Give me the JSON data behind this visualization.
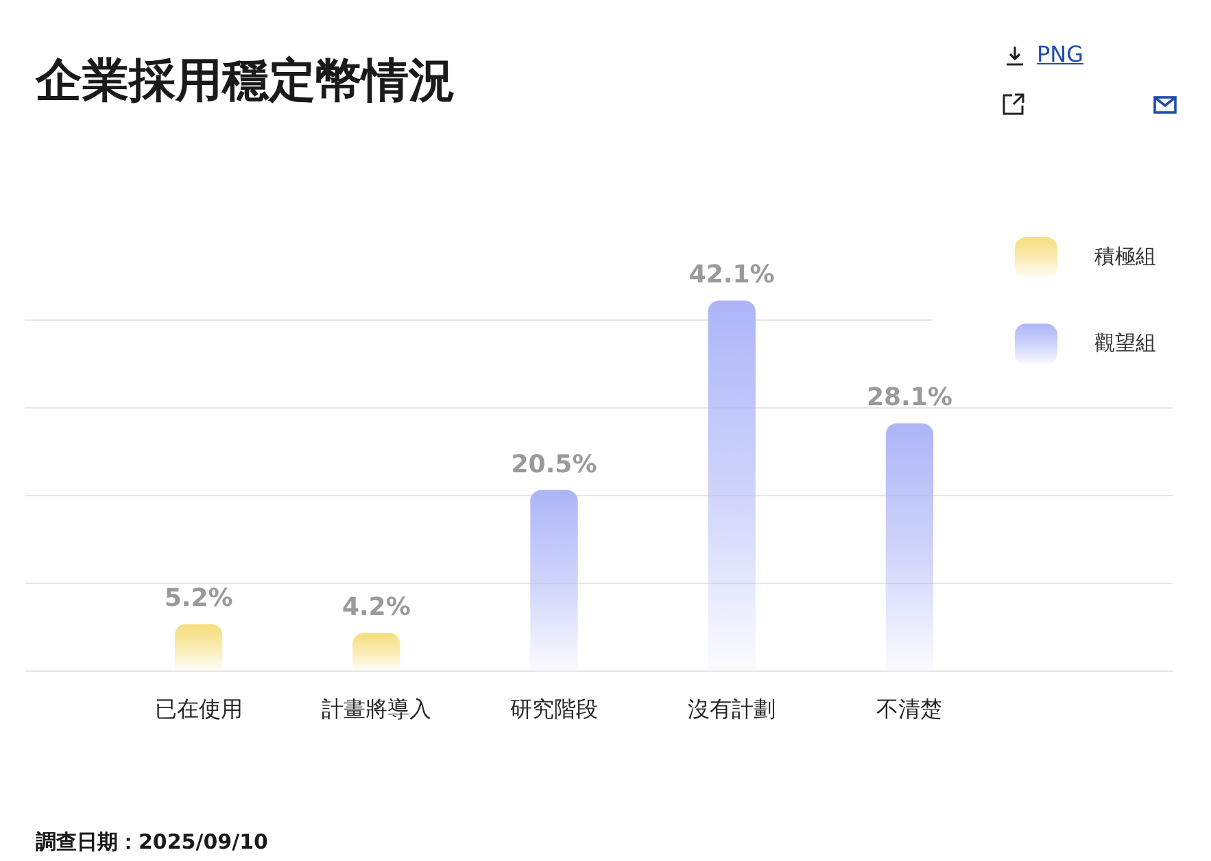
{
  "chart_data": {
    "type": "bar",
    "title": "企業採用穩定幣情況",
    "categories": [
      "已在使用",
      "計畫將導入",
      "研究階段",
      "沒有計劃",
      "不清楚"
    ],
    "series": [
      {
        "name": "積極組",
        "color": "#f5de7c",
        "values": [
          5.2,
          4.2,
          null,
          null,
          null
        ],
        "value_labels": [
          "5.2%",
          "4.2%",
          null,
          null,
          null
        ]
      },
      {
        "name": "觀望組",
        "color": "#adb5f8",
        "values": [
          null,
          null,
          20.5,
          42.1,
          28.1
        ],
        "value_labels": [
          null,
          null,
          "20.5%",
          "42.1%",
          "28.1%"
        ]
      }
    ],
    "tick_labels": "x",
    "grid": "y",
    "legend": "top right",
    "annotations": [
      "調查日期：2025/09/10",
      "PNG"
    ]
  }
}
